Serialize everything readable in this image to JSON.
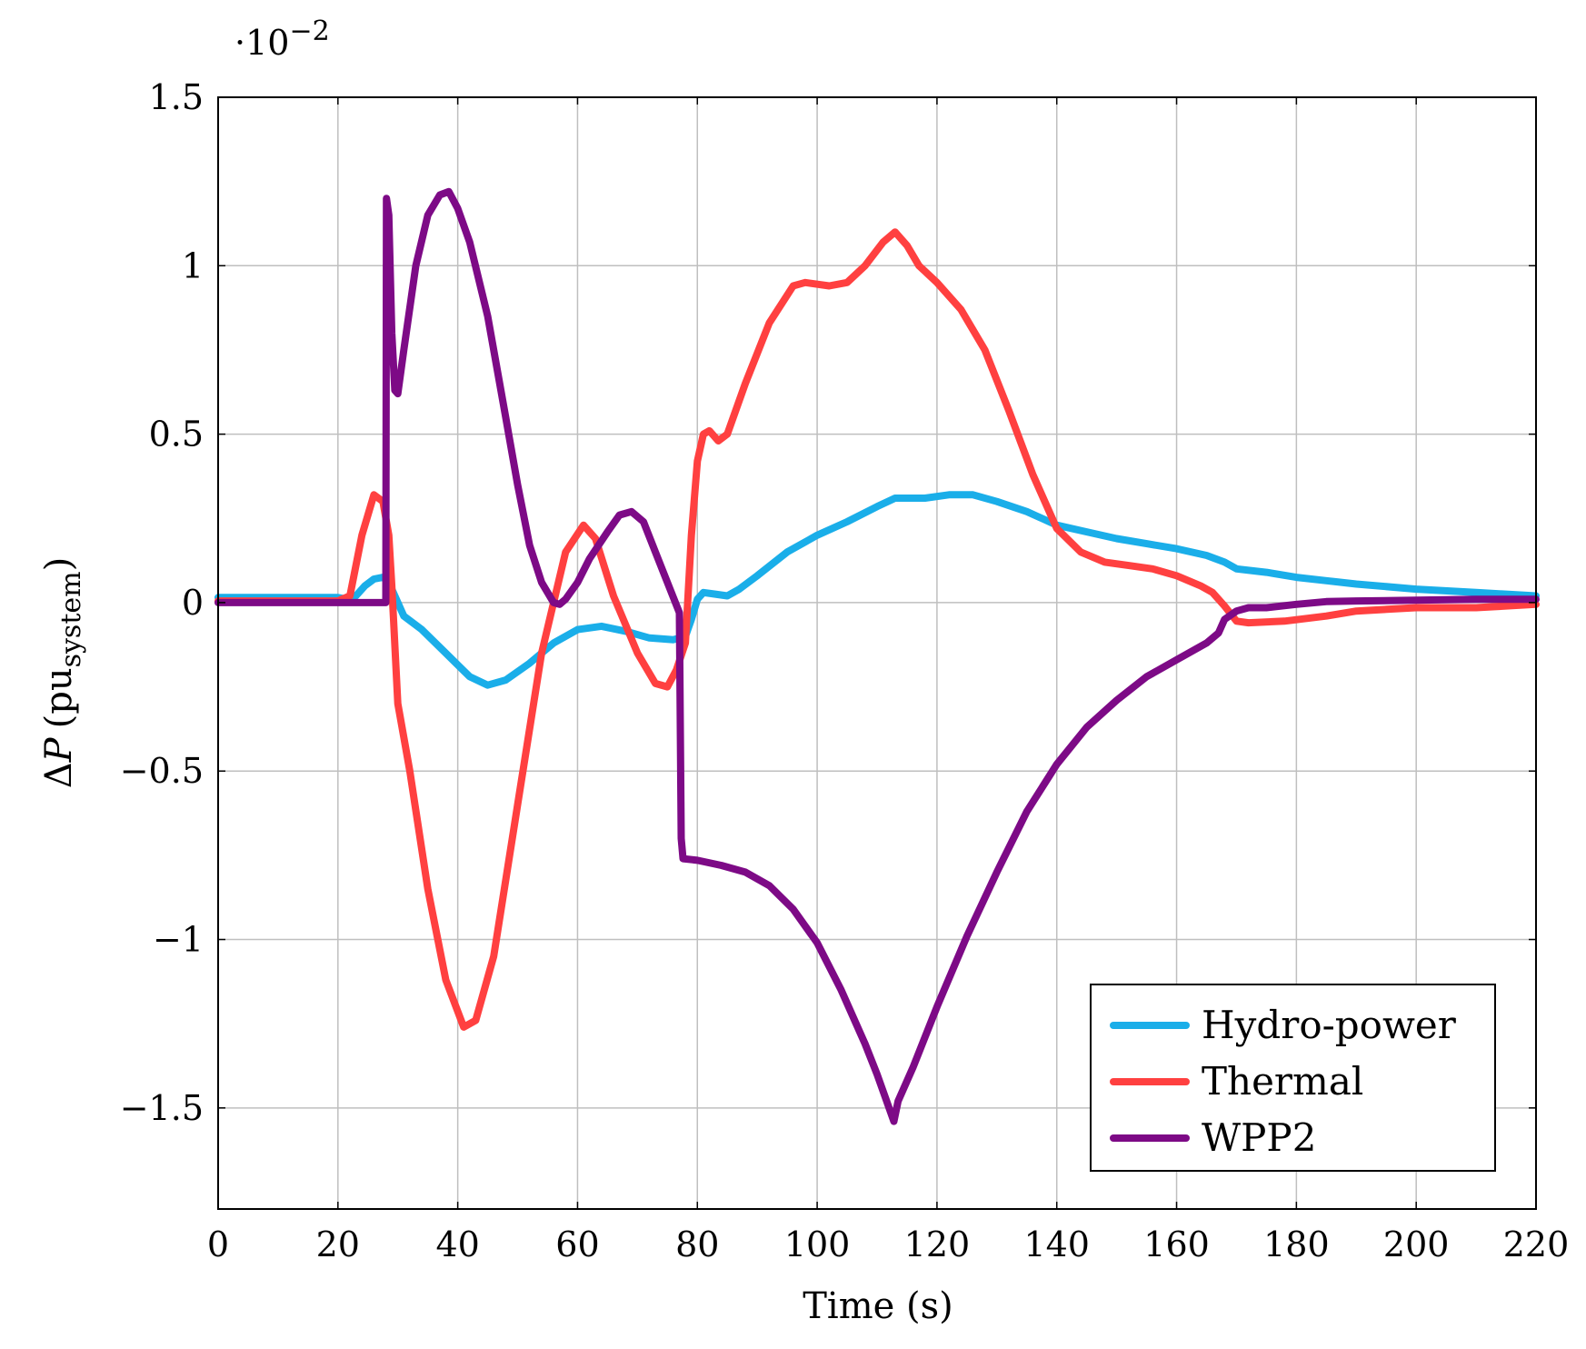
{
  "chart_data": {
    "type": "line",
    "title": "",
    "xlabel": "Time (s)",
    "ylabel": "ΔP (pu_system)",
    "ylabel_parts": {
      "delta": "Δ",
      "var": "P",
      "open": "(",
      "base": "pu",
      "sub": "system",
      "close": ")"
    },
    "y_scale_label": {
      "dot": "·",
      "base": "10",
      "exp": "−2"
    },
    "xlim": [
      0,
      220
    ],
    "ylim": [
      -1.8,
      1.5
    ],
    "grid": true,
    "legend_position": "bottom-right",
    "x_ticks": [
      0,
      20,
      40,
      60,
      80,
      100,
      120,
      140,
      160,
      180,
      200,
      220
    ],
    "x_tick_labels": [
      "0",
      "20",
      "40",
      "60",
      "80",
      "100",
      "120",
      "140",
      "160",
      "180",
      "200",
      "220"
    ],
    "y_ticks": [
      1.5,
      1,
      0.5,
      0,
      -0.5,
      -1,
      -1.5
    ],
    "y_tick_labels": [
      "1.5",
      "1",
      "0.5",
      "0",
      "−0.5",
      "−1",
      "−1.5"
    ],
    "series": [
      {
        "name": "Hydro-power",
        "color": "#1aaee9",
        "points": [
          [
            0,
            0.015
          ],
          [
            20,
            0.015
          ],
          [
            21.5,
            0.01
          ],
          [
            23,
            0.02
          ],
          [
            24.5,
            0.05
          ],
          [
            26,
            0.07
          ],
          [
            27.5,
            0.075
          ],
          [
            28.5,
            0.06
          ],
          [
            29.5,
            0.02
          ],
          [
            31,
            -0.04
          ],
          [
            34,
            -0.08
          ],
          [
            38,
            -0.15
          ],
          [
            42,
            -0.22
          ],
          [
            45,
            -0.245
          ],
          [
            48,
            -0.23
          ],
          [
            52,
            -0.18
          ],
          [
            56,
            -0.12
          ],
          [
            60,
            -0.08
          ],
          [
            64,
            -0.07
          ],
          [
            68,
            -0.085
          ],
          [
            72,
            -0.105
          ],
          [
            76,
            -0.11
          ],
          [
            78,
            -0.1
          ],
          [
            79,
            -0.05
          ],
          [
            80,
            0.01
          ],
          [
            81,
            0.03
          ],
          [
            83,
            0.025
          ],
          [
            85,
            0.02
          ],
          [
            87,
            0.04
          ],
          [
            90,
            0.08
          ],
          [
            95,
            0.15
          ],
          [
            100,
            0.2
          ],
          [
            105,
            0.24
          ],
          [
            110,
            0.285
          ],
          [
            113,
            0.31
          ],
          [
            115,
            0.31
          ],
          [
            118,
            0.31
          ],
          [
            122,
            0.32
          ],
          [
            126,
            0.32
          ],
          [
            130,
            0.3
          ],
          [
            135,
            0.27
          ],
          [
            140,
            0.23
          ],
          [
            145,
            0.21
          ],
          [
            150,
            0.19
          ],
          [
            155,
            0.175
          ],
          [
            160,
            0.16
          ],
          [
            165,
            0.14
          ],
          [
            168,
            0.12
          ],
          [
            170,
            0.1
          ],
          [
            175,
            0.09
          ],
          [
            180,
            0.075
          ],
          [
            185,
            0.065
          ],
          [
            190,
            0.055
          ],
          [
            200,
            0.04
          ],
          [
            210,
            0.03
          ],
          [
            220,
            0.02
          ]
        ]
      },
      {
        "name": "Thermal",
        "color": "#ff4040",
        "points": [
          [
            0,
            0.005
          ],
          [
            20,
            0.005
          ],
          [
            22,
            0.02
          ],
          [
            24,
            0.2
          ],
          [
            26,
            0.32
          ],
          [
            27.5,
            0.3
          ],
          [
            28.5,
            0.2
          ],
          [
            29,
            0.05
          ],
          [
            30,
            -0.3
          ],
          [
            32,
            -0.5
          ],
          [
            35,
            -0.85
          ],
          [
            38,
            -1.12
          ],
          [
            41,
            -1.26
          ],
          [
            43,
            -1.24
          ],
          [
            46,
            -1.05
          ],
          [
            50,
            -0.6
          ],
          [
            54,
            -0.15
          ],
          [
            58,
            0.15
          ],
          [
            61,
            0.23
          ],
          [
            63,
            0.19
          ],
          [
            66,
            0.02
          ],
          [
            70,
            -0.15
          ],
          [
            73,
            -0.24
          ],
          [
            75,
            -0.25
          ],
          [
            76.5,
            -0.2
          ],
          [
            78,
            -0.12
          ],
          [
            79,
            0.2
          ],
          [
            80,
            0.42
          ],
          [
            81,
            0.5
          ],
          [
            82,
            0.51
          ],
          [
            83.5,
            0.48
          ],
          [
            85,
            0.5
          ],
          [
            88,
            0.65
          ],
          [
            92,
            0.83
          ],
          [
            96,
            0.94
          ],
          [
            98,
            0.95
          ],
          [
            102,
            0.94
          ],
          [
            105,
            0.95
          ],
          [
            108,
            1.0
          ],
          [
            111,
            1.07
          ],
          [
            113,
            1.1
          ],
          [
            115,
            1.06
          ],
          [
            117,
            1.0
          ],
          [
            120,
            0.95
          ],
          [
            124,
            0.87
          ],
          [
            128,
            0.75
          ],
          [
            132,
            0.57
          ],
          [
            136,
            0.38
          ],
          [
            140,
            0.22
          ],
          [
            144,
            0.15
          ],
          [
            148,
            0.12
          ],
          [
            152,
            0.11
          ],
          [
            156,
            0.1
          ],
          [
            160,
            0.08
          ],
          [
            164,
            0.05
          ],
          [
            166,
            0.03
          ],
          [
            168,
            -0.01
          ],
          [
            170,
            -0.055
          ],
          [
            172,
            -0.06
          ],
          [
            178,
            -0.055
          ],
          [
            185,
            -0.04
          ],
          [
            190,
            -0.025
          ],
          [
            200,
            -0.015
          ],
          [
            210,
            -0.015
          ],
          [
            220,
            -0.005
          ]
        ]
      },
      {
        "name": "WPP2",
        "color": "#7d0a86",
        "points": [
          [
            0,
            0.0
          ],
          [
            28,
            0.0
          ],
          [
            28.1,
            1.2
          ],
          [
            28.5,
            1.15
          ],
          [
            29,
            0.8
          ],
          [
            29.5,
            0.63
          ],
          [
            30,
            0.62
          ],
          [
            31,
            0.75
          ],
          [
            33,
            1.0
          ],
          [
            35,
            1.15
          ],
          [
            37,
            1.21
          ],
          [
            38.5,
            1.22
          ],
          [
            40,
            1.17
          ],
          [
            42,
            1.07
          ],
          [
            45,
            0.85
          ],
          [
            48,
            0.55
          ],
          [
            50,
            0.35
          ],
          [
            52,
            0.17
          ],
          [
            54,
            0.06
          ],
          [
            56,
            0.0
          ],
          [
            57,
            -0.005
          ],
          [
            58,
            0.01
          ],
          [
            60,
            0.06
          ],
          [
            62,
            0.13
          ],
          [
            65,
            0.21
          ],
          [
            67,
            0.26
          ],
          [
            69,
            0.27
          ],
          [
            71,
            0.24
          ],
          [
            73,
            0.15
          ],
          [
            75,
            0.06
          ],
          [
            77,
            -0.03
          ],
          [
            77.3,
            -0.7
          ],
          [
            77.6,
            -0.76
          ],
          [
            80,
            -0.765
          ],
          [
            84,
            -0.78
          ],
          [
            88,
            -0.8
          ],
          [
            92,
            -0.84
          ],
          [
            96,
            -0.91
          ],
          [
            100,
            -1.01
          ],
          [
            104,
            -1.15
          ],
          [
            108,
            -1.31
          ],
          [
            110,
            -1.4
          ],
          [
            112,
            -1.5
          ],
          [
            112.8,
            -1.54
          ],
          [
            113.5,
            -1.48
          ],
          [
            116,
            -1.38
          ],
          [
            120,
            -1.2
          ],
          [
            125,
            -0.99
          ],
          [
            130,
            -0.8
          ],
          [
            135,
            -0.62
          ],
          [
            140,
            -0.48
          ],
          [
            145,
            -0.37
          ],
          [
            150,
            -0.29
          ],
          [
            155,
            -0.22
          ],
          [
            160,
            -0.17
          ],
          [
            165,
            -0.12
          ],
          [
            167,
            -0.09
          ],
          [
            168,
            -0.05
          ],
          [
            170,
            -0.025
          ],
          [
            172,
            -0.015
          ],
          [
            175,
            -0.015
          ],
          [
            180,
            -0.005
          ],
          [
            185,
            0.003
          ],
          [
            190,
            0.005
          ],
          [
            200,
            0.007
          ],
          [
            210,
            0.01
          ],
          [
            220,
            0.01
          ]
        ]
      }
    ]
  }
}
